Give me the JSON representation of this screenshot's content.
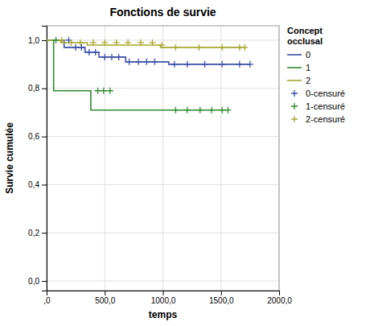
{
  "chart_data": {
    "type": "step",
    "title": "Fonctions de survie",
    "x_label": "temps",
    "y_label": "Survie cumulée",
    "legend_title": "Concept\nocclusal",
    "legend": "right",
    "grid": true,
    "xlim": [
      0,
      2000
    ],
    "ylim": [
      -0.04,
      1.06
    ],
    "xticks": [
      {
        "value": 0,
        "label": ",0"
      },
      {
        "value": 500,
        "label": "500,0"
      },
      {
        "value": 1000,
        "label": "1000,0"
      },
      {
        "value": 1500,
        "label": "1500,0"
      },
      {
        "value": 2000,
        "label": "2000,0"
      }
    ],
    "yticks": [
      {
        "value": 0.0,
        "label": "0,0"
      },
      {
        "value": 0.2,
        "label": "0,2"
      },
      {
        "value": 0.4,
        "label": "0,4"
      },
      {
        "value": 0.6,
        "label": "0,6"
      },
      {
        "value": 0.8,
        "label": "0,8"
      },
      {
        "value": 1.0,
        "label": "1,0"
      }
    ],
    "series": [
      {
        "name": "0",
        "type": "step",
        "line_style": "solid",
        "color": "#3a50a8",
        "x": [
          0,
          150,
          330,
          450,
          680,
          1050,
          1750
        ],
        "values": [
          1.0,
          0.97,
          0.95,
          0.93,
          0.91,
          0.9,
          0.9
        ]
      },
      {
        "name": "1",
        "type": "step",
        "line_style": "solid",
        "color": "#2d8a2d",
        "x": [
          0,
          60,
          380,
          1080,
          1550
        ],
        "values": [
          1.0,
          0.79,
          0.71,
          0.71,
          0.71
        ]
      },
      {
        "name": "2",
        "type": "step",
        "line_style": "solid",
        "color": "#a8a830",
        "x": [
          0,
          120,
          350,
          980,
          1700
        ],
        "values": [
          1.0,
          0.99,
          0.98,
          0.97,
          0.97
        ]
      },
      {
        "name": "0-censuré",
        "type": "scatter",
        "marker": "+",
        "color": "#3a50a8",
        "x": [
          190,
          250,
          300,
          365,
          420,
          500,
          560,
          620,
          710,
          790,
          860,
          930,
          1100,
          1210,
          1360,
          1510,
          1660,
          1750
        ],
        "values": [
          1.0,
          0.97,
          0.97,
          0.95,
          0.95,
          0.93,
          0.93,
          0.93,
          0.91,
          0.91,
          0.91,
          0.91,
          0.9,
          0.9,
          0.9,
          0.9,
          0.9,
          0.9
        ]
      },
      {
        "name": "1-censuré",
        "type": "scatter",
        "marker": "+",
        "color": "#2d8a2d",
        "x": [
          80,
          440,
          490,
          545,
          1110,
          1210,
          1320,
          1420,
          1510,
          1560
        ],
        "values": [
          1.0,
          0.79,
          0.79,
          0.79,
          0.71,
          0.71,
          0.71,
          0.71,
          0.71,
          0.71
        ]
      },
      {
        "name": "2-censuré",
        "type": "scatter",
        "marker": "+",
        "color": "#a8a830",
        "x": [
          130,
          210,
          290,
          400,
          500,
          600,
          700,
          810,
          910,
          990,
          1110,
          1310,
          1510,
          1660,
          1705
        ],
        "values": [
          1.0,
          0.99,
          0.99,
          0.99,
          0.99,
          0.99,
          0.99,
          0.99,
          0.99,
          0.98,
          0.97,
          0.97,
          0.97,
          0.97,
          0.97
        ]
      }
    ]
  }
}
